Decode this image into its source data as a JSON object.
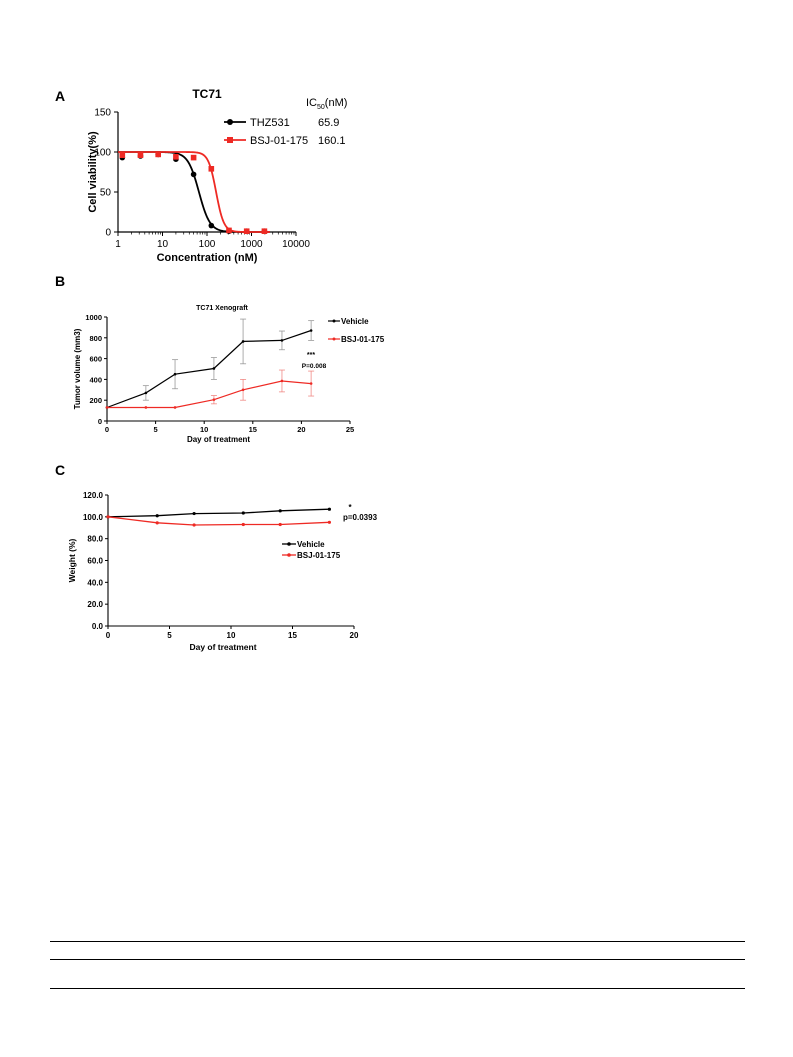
{
  "colors": {
    "black": "#000000",
    "red": "#ee2a24",
    "grey": "#9a9a9a"
  },
  "chart_data": [
    {
      "panel": "A",
      "type": "line",
      "title": "TC71",
      "xlabel": "Concentration (nM)",
      "ylabel": "Cell viability(%)",
      "xscale": "log",
      "xlim": [
        1,
        10000
      ],
      "ylim": [
        0,
        150
      ],
      "xticks": [
        "1",
        "10",
        "100",
        "1000",
        "10000"
      ],
      "yticks": [
        "0",
        "50",
        "100",
        "150"
      ],
      "legend_header": {
        "prefix": "IC",
        "sub": "50",
        "suffix": "(nM)"
      },
      "legend_position": "top-right",
      "series": [
        {
          "name": "THZ531",
          "ic50": "65.9",
          "color": "#000000",
          "marker": "circle",
          "x": [
            1.25,
            3.2,
            8,
            20,
            50,
            125,
            312,
            780,
            1950
          ],
          "y": [
            93,
            95,
            97,
            91,
            72,
            8,
            1,
            1,
            1
          ],
          "fit": {
            "top": 100,
            "bottom": 0,
            "ic50": 65.9,
            "hill": 3.5
          }
        },
        {
          "name": "BSJ-01-175",
          "ic50": "160.1",
          "color": "#ee2a24",
          "marker": "square",
          "x": [
            1.25,
            3.2,
            8,
            20,
            50,
            125,
            312,
            780,
            1950
          ],
          "y": [
            96,
            96,
            97,
            94,
            93,
            79,
            2,
            1,
            1
          ],
          "fit": {
            "top": 100,
            "bottom": 0,
            "ic50": 160.1,
            "hill": 5
          }
        }
      ]
    },
    {
      "panel": "B",
      "type": "line",
      "title": "TC71 Xenograft",
      "xlabel": "Day of treatment",
      "ylabel": "Tumor volume (mm3)",
      "xlim": [
        0,
        25
      ],
      "ylim": [
        0,
        1000
      ],
      "xticks": [
        "0",
        "5",
        "10",
        "15",
        "20",
        "25"
      ],
      "yticks": [
        "0",
        "200",
        "400",
        "600",
        "800",
        "1000"
      ],
      "legend_position": "top-right",
      "annotation": {
        "stars": "***",
        "p": "P=0.008"
      },
      "series": [
        {
          "name": "Vehicle",
          "color": "#000000",
          "x": [
            0,
            4,
            7,
            11,
            14,
            18,
            21
          ],
          "y": [
            130,
            270,
            450,
            505,
            765,
            775,
            870
          ],
          "err": [
            0,
            70,
            140,
            105,
            215,
            90,
            95
          ]
        },
        {
          "name": "BSJ-01-175",
          "color": "#ee2a24",
          "x": [
            0,
            4,
            7,
            11,
            14,
            18,
            21
          ],
          "y": [
            130,
            130,
            130,
            205,
            300,
            385,
            360
          ],
          "err": [
            0,
            0,
            0,
            40,
            100,
            105,
            120
          ]
        }
      ]
    },
    {
      "panel": "C",
      "type": "line",
      "xlabel": "Day of treatment",
      "ylabel": "Weight (%)",
      "xlim": [
        0,
        20
      ],
      "ylim": [
        0,
        120
      ],
      "xticks": [
        "0",
        "5",
        "10",
        "15",
        "20"
      ],
      "yticks": [
        "0.0",
        "20.0",
        "40.0",
        "60.0",
        "80.0",
        "100.0",
        "120.0"
      ],
      "legend_position": "center-right",
      "annotation": {
        "stars": "*",
        "p": "p=0.0393"
      },
      "series": [
        {
          "name": "Vehicle",
          "color": "#000000",
          "x": [
            0,
            4,
            7,
            11,
            14,
            18
          ],
          "y": [
            100,
            101,
            103,
            103.5,
            105.5,
            107
          ]
        },
        {
          "name": "BSJ-01-175",
          "color": "#ee2a24",
          "x": [
            0,
            4,
            7,
            11,
            14,
            18
          ],
          "y": [
            100,
            94.5,
            92.5,
            93,
            93,
            95
          ]
        }
      ]
    }
  ]
}
